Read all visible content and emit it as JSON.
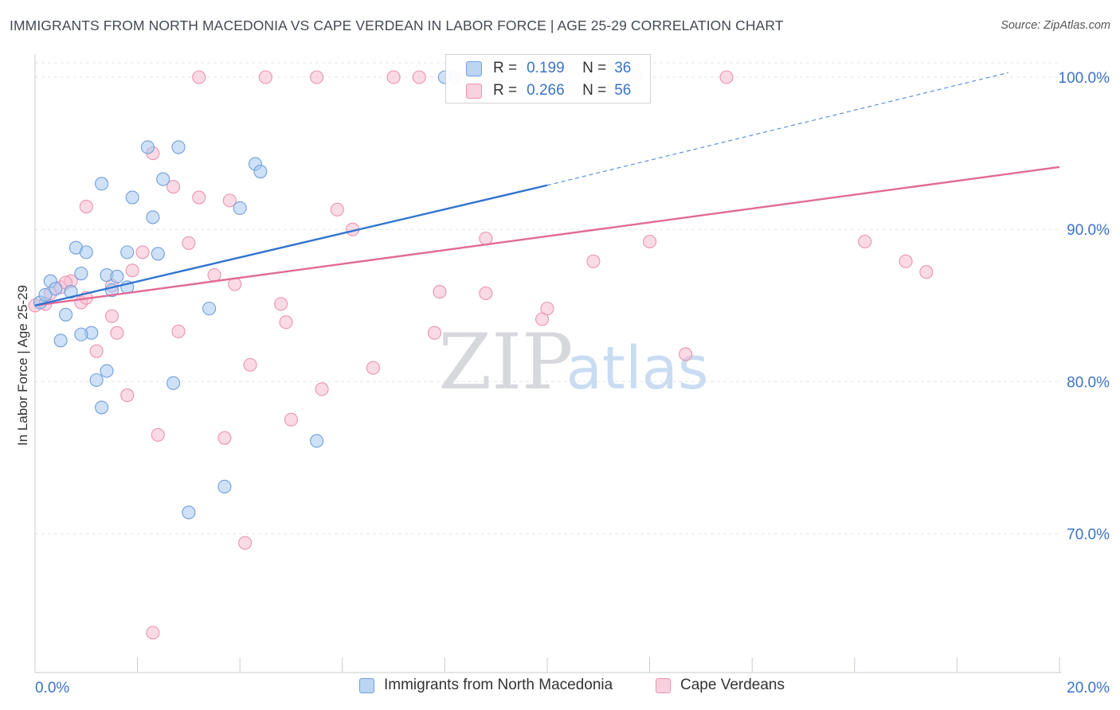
{
  "header": {
    "title": "IMMIGRANTS FROM NORTH MACEDONIA VS CAPE VERDEAN IN LABOR FORCE | AGE 25-29 CORRELATION CHART",
    "source": "Source: ZipAtlas.com"
  },
  "watermark": {
    "zip": "ZIP",
    "atlas": "atlas"
  },
  "legend_box": {
    "rows": [
      {
        "r_label": "R =",
        "r_value": "0.199",
        "n_label": "N =",
        "n_value": "36"
      },
      {
        "r_label": "R =",
        "r_value": "0.266",
        "n_label": "N =",
        "n_value": "56"
      }
    ]
  },
  "colors": {
    "blue_fill": "#a8c8f0",
    "blue_stroke": "#6f9fdc",
    "blue_line": "#2f74cf",
    "pink_fill": "#f6bcd0",
    "pink_stroke": "#eb93b1",
    "pink_line": "#e16a96",
    "axis_label": "#3b73c4",
    "grid": "#e3e6ea"
  },
  "chart_data": {
    "type": "scatter",
    "title": "IMMIGRANTS FROM NORTH MACEDONIA VS CAPE VERDEAN IN LABOR FORCE | AGE 25-29 CORRELATION CHART",
    "xlabel": "",
    "ylabel": "In Labor Force | Age 25-29",
    "xlim": [
      0,
      20
    ],
    "ylim": [
      60.0,
      101.5
    ],
    "x_tick_labels": [
      "0.0%",
      "20.0%"
    ],
    "y_ticks": [
      70,
      80,
      90,
      100
    ],
    "y_tick_labels": [
      "70.0%",
      "80.0%",
      "90.0%",
      "100.0%"
    ],
    "grid": true,
    "legend_position": "bottom",
    "series": [
      {
        "name": "Immigrants from North Macedonia",
        "color": "blue",
        "r": 0.199,
        "n": 36,
        "trend": {
          "x": [
            0.0,
            10.0
          ],
          "y": [
            85.0,
            92.9
          ],
          "dashed_extension_to": [
            19.0,
            100.3
          ]
        },
        "points": [
          [
            0.1,
            85.2
          ],
          [
            0.2,
            85.7
          ],
          [
            0.3,
            86.6
          ],
          [
            0.4,
            86.1
          ],
          [
            0.5,
            82.7
          ],
          [
            0.6,
            84.4
          ],
          [
            0.8,
            88.8
          ],
          [
            0.9,
            87.1
          ],
          [
            0.7,
            85.9
          ],
          [
            1.0,
            88.5
          ],
          [
            1.1,
            83.2
          ],
          [
            1.2,
            80.1
          ],
          [
            0.9,
            83.1
          ],
          [
            1.4,
            87.0
          ],
          [
            1.5,
            86.0
          ],
          [
            1.6,
            86.9
          ],
          [
            1.3,
            78.3
          ],
          [
            1.3,
            93.0
          ],
          [
            1.4,
            80.7
          ],
          [
            1.8,
            86.2
          ],
          [
            1.8,
            88.5
          ],
          [
            1.9,
            92.1
          ],
          [
            2.2,
            95.4
          ],
          [
            2.3,
            90.8
          ],
          [
            2.5,
            93.3
          ],
          [
            2.7,
            79.9
          ],
          [
            2.4,
            88.4
          ],
          [
            2.8,
            95.4
          ],
          [
            3.0,
            71.4
          ],
          [
            3.4,
            84.8
          ],
          [
            3.7,
            73.1
          ],
          [
            4.3,
            94.3
          ],
          [
            4.0,
            91.4
          ],
          [
            4.4,
            93.8
          ],
          [
            5.5,
            76.1
          ],
          [
            8.0,
            100.0
          ]
        ]
      },
      {
        "name": "Cape Verdeans",
        "color": "pink",
        "r": 0.266,
        "n": 56,
        "trend": {
          "x": [
            0.0,
            20.0
          ],
          "y": [
            85.0,
            94.1
          ]
        },
        "points": [
          [
            0.0,
            85.0
          ],
          [
            0.3,
            85.8
          ],
          [
            0.5,
            86.2
          ],
          [
            0.7,
            86.6
          ],
          [
            0.9,
            85.2
          ],
          [
            1.0,
            91.5
          ],
          [
            1.2,
            82.0
          ],
          [
            1.5,
            86.3
          ],
          [
            1.5,
            84.3
          ],
          [
            1.6,
            83.2
          ],
          [
            1.8,
            79.1
          ],
          [
            1.9,
            87.3
          ],
          [
            2.1,
            88.5
          ],
          [
            2.4,
            76.5
          ],
          [
            2.3,
            95.0
          ],
          [
            2.7,
            92.8
          ],
          [
            2.8,
            83.3
          ],
          [
            3.0,
            89.1
          ],
          [
            3.2,
            92.1
          ],
          [
            3.2,
            100.0
          ],
          [
            3.5,
            87.0
          ],
          [
            3.7,
            76.3
          ],
          [
            3.8,
            91.9
          ],
          [
            3.9,
            86.4
          ],
          [
            4.1,
            69.4
          ],
          [
            4.2,
            81.1
          ],
          [
            4.5,
            100.0
          ],
          [
            4.8,
            85.1
          ],
          [
            4.9,
            83.9
          ],
          [
            5.0,
            77.5
          ],
          [
            5.5,
            100.0
          ],
          [
            5.6,
            79.5
          ],
          [
            5.9,
            91.3
          ],
          [
            6.2,
            90.0
          ],
          [
            6.6,
            80.9
          ],
          [
            7.0,
            100.0
          ],
          [
            7.5,
            100.0
          ],
          [
            7.8,
            83.2
          ],
          [
            7.9,
            85.9
          ],
          [
            8.2,
            100.0
          ],
          [
            8.8,
            89.4
          ],
          [
            8.8,
            85.8
          ],
          [
            9.9,
            84.1
          ],
          [
            10.0,
            84.8
          ],
          [
            10.9,
            87.9
          ],
          [
            11.7,
            100.0
          ],
          [
            12.0,
            89.2
          ],
          [
            12.7,
            81.8
          ],
          [
            13.5,
            100.0
          ],
          [
            16.2,
            89.2
          ],
          [
            17.0,
            87.9
          ],
          [
            17.4,
            87.2
          ],
          [
            2.3,
            63.5
          ],
          [
            0.2,
            85.1
          ],
          [
            0.6,
            86.5
          ],
          [
            1.0,
            85.5
          ]
        ]
      }
    ]
  }
}
